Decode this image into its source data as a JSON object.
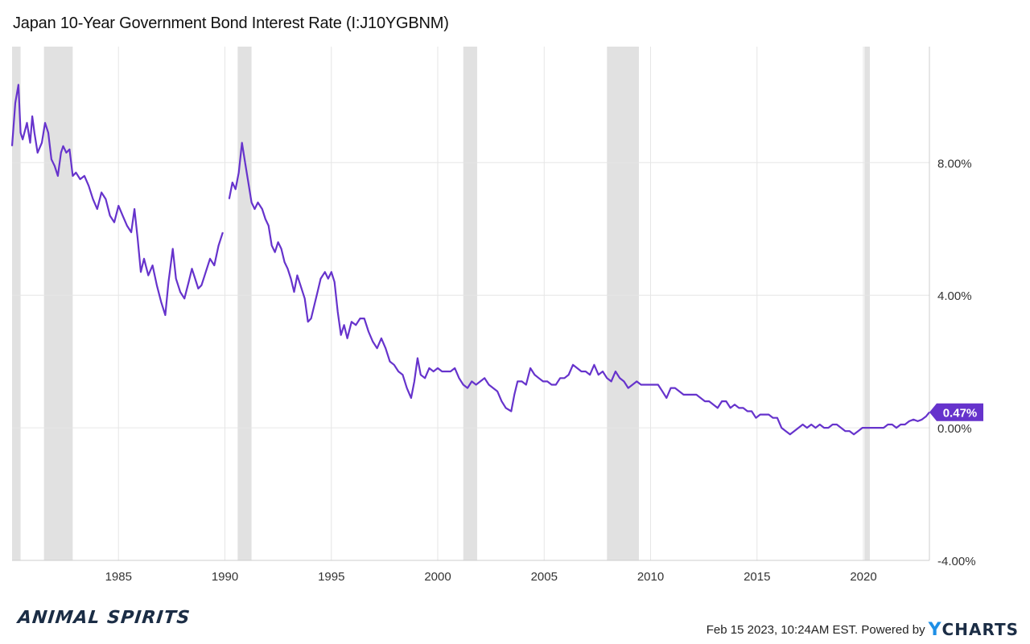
{
  "title": "Japan 10-Year Government Bond Interest Rate (I:J10YGBNM)",
  "footer": {
    "logo_text": "ANIMAL SPIRITS",
    "timestamp": "Feb 15 2023, 10:24AM EST.",
    "powered_by": "Powered by",
    "brand_y": "Y",
    "brand_rest": "CHARTS"
  },
  "colors": {
    "line": "#6633cc",
    "recession": "#e1e1e1",
    "grid": "#e6e6e6",
    "badge": "#6633cc"
  },
  "chart_data": {
    "type": "line",
    "title": "Japan 10-Year Government Bond Interest Rate (I:J10YGBNM)",
    "xlabel": "",
    "ylabel": "",
    "xlim": [
      1980.0,
      2023.1
    ],
    "ylim": [
      -4.0,
      11.5
    ],
    "y_ticks": [
      -4,
      0,
      4,
      8
    ],
    "y_tick_labels": [
      "-4.00%",
      "0.00%",
      "4.00%",
      "8.00%"
    ],
    "x_ticks": [
      1985,
      1990,
      1995,
      2000,
      2005,
      2010,
      2015,
      2020
    ],
    "x_tick_labels": [
      "1985",
      "1990",
      "1995",
      "2000",
      "2005",
      "2010",
      "2015",
      "2020"
    ],
    "grid": true,
    "last_value_label": "0.47%",
    "recession_periods": [
      [
        1980.0,
        1980.4
      ],
      [
        1981.5,
        1982.85
      ],
      [
        1990.6,
        1991.25
      ],
      [
        2001.2,
        2001.85
      ],
      [
        2007.95,
        2009.45
      ],
      [
        2020.05,
        2020.3
      ]
    ],
    "series": [
      {
        "points": [
          [
            1980.0,
            8.5
          ],
          [
            1980.15,
            9.8
          ],
          [
            1980.3,
            10.35
          ],
          [
            1980.4,
            8.9
          ],
          [
            1980.5,
            8.7
          ],
          [
            1980.7,
            9.2
          ],
          [
            1980.85,
            8.6
          ],
          [
            1980.95,
            9.4
          ],
          [
            1981.05,
            8.9
          ],
          [
            1981.2,
            8.3
          ],
          [
            1981.4,
            8.6
          ],
          [
            1981.55,
            9.2
          ],
          [
            1981.7,
            8.9
          ],
          [
            1981.85,
            8.1
          ],
          [
            1982.0,
            7.9
          ],
          [
            1982.15,
            7.6
          ],
          [
            1982.3,
            8.3
          ],
          [
            1982.4,
            8.5
          ],
          [
            1982.55,
            8.3
          ],
          [
            1982.7,
            8.4
          ],
          [
            1982.85,
            7.6
          ],
          [
            1983.0,
            7.7
          ],
          [
            1983.2,
            7.5
          ],
          [
            1983.4,
            7.6
          ],
          [
            1983.6,
            7.3
          ],
          [
            1983.8,
            6.9
          ],
          [
            1984.0,
            6.6
          ],
          [
            1984.2,
            7.1
          ],
          [
            1984.4,
            6.9
          ],
          [
            1984.6,
            6.4
          ],
          [
            1984.8,
            6.2
          ],
          [
            1985.0,
            6.7
          ],
          [
            1985.2,
            6.4
          ],
          [
            1985.4,
            6.1
          ],
          [
            1985.6,
            5.9
          ],
          [
            1985.75,
            6.6
          ],
          [
            1985.9,
            5.7
          ],
          [
            1986.05,
            4.7
          ],
          [
            1986.2,
            5.1
          ],
          [
            1986.4,
            4.6
          ],
          [
            1986.6,
            4.9
          ],
          [
            1986.8,
            4.3
          ],
          [
            1987.0,
            3.8
          ],
          [
            1987.2,
            3.4
          ],
          [
            1987.35,
            4.4
          ],
          [
            1987.55,
            5.4
          ],
          [
            1987.7,
            4.5
          ],
          [
            1987.9,
            4.1
          ],
          [
            1988.1,
            3.9
          ],
          [
            1988.3,
            4.4
          ],
          [
            1988.45,
            4.8
          ],
          [
            1988.6,
            4.5
          ],
          [
            1988.75,
            4.2
          ],
          [
            1988.9,
            4.3
          ],
          [
            1989.1,
            4.7
          ],
          [
            1989.3,
            5.1
          ],
          [
            1989.5,
            4.9
          ],
          [
            1989.7,
            5.5
          ],
          [
            1989.9,
            5.9
          ]
        ]
      },
      {
        "points": [
          [
            1990.2,
            6.9
          ],
          [
            1990.35,
            7.4
          ],
          [
            1990.5,
            7.2
          ],
          [
            1990.65,
            7.7
          ],
          [
            1990.8,
            8.6
          ],
          [
            1990.95,
            8.0
          ],
          [
            1991.1,
            7.4
          ],
          [
            1991.25,
            6.8
          ],
          [
            1991.4,
            6.6
          ],
          [
            1991.55,
            6.8
          ],
          [
            1991.75,
            6.6
          ],
          [
            1991.9,
            6.3
          ],
          [
            1992.05,
            6.1
          ],
          [
            1992.2,
            5.5
          ],
          [
            1992.35,
            5.3
          ],
          [
            1992.5,
            5.6
          ],
          [
            1992.65,
            5.4
          ],
          [
            1992.8,
            5.0
          ],
          [
            1992.95,
            4.8
          ],
          [
            1993.1,
            4.5
          ],
          [
            1993.25,
            4.1
          ],
          [
            1993.4,
            4.6
          ],
          [
            1993.55,
            4.3
          ],
          [
            1993.75,
            3.9
          ],
          [
            1993.9,
            3.2
          ],
          [
            1994.05,
            3.3
          ],
          [
            1994.2,
            3.7
          ],
          [
            1994.35,
            4.1
          ],
          [
            1994.5,
            4.5
          ],
          [
            1994.7,
            4.7
          ],
          [
            1994.85,
            4.5
          ],
          [
            1995.0,
            4.7
          ],
          [
            1995.15,
            4.4
          ],
          [
            1995.3,
            3.5
          ],
          [
            1995.45,
            2.8
          ],
          [
            1995.6,
            3.1
          ],
          [
            1995.75,
            2.7
          ],
          [
            1995.95,
            3.2
          ],
          [
            1996.15,
            3.1
          ],
          [
            1996.35,
            3.3
          ],
          [
            1996.55,
            3.3
          ],
          [
            1996.75,
            2.9
          ],
          [
            1996.95,
            2.6
          ],
          [
            1997.15,
            2.4
          ],
          [
            1997.35,
            2.7
          ],
          [
            1997.55,
            2.4
          ],
          [
            1997.75,
            2.0
          ],
          [
            1997.95,
            1.9
          ],
          [
            1998.15,
            1.7
          ],
          [
            1998.35,
            1.6
          ],
          [
            1998.55,
            1.2
          ],
          [
            1998.75,
            0.9
          ],
          [
            1998.9,
            1.4
          ],
          [
            1999.05,
            2.1
          ],
          [
            1999.2,
            1.6
          ],
          [
            1999.4,
            1.5
          ],
          [
            1999.6,
            1.8
          ],
          [
            1999.8,
            1.7
          ],
          [
            2000.0,
            1.8
          ],
          [
            2000.2,
            1.7
          ],
          [
            2000.4,
            1.7
          ],
          [
            2000.6,
            1.7
          ],
          [
            2000.8,
            1.8
          ],
          [
            2001.0,
            1.5
          ],
          [
            2001.2,
            1.3
          ],
          [
            2001.4,
            1.2
          ],
          [
            2001.6,
            1.4
          ],
          [
            2001.8,
            1.3
          ],
          [
            2002.0,
            1.4
          ],
          [
            2002.2,
            1.5
          ],
          [
            2002.4,
            1.3
          ],
          [
            2002.6,
            1.2
          ],
          [
            2002.8,
            1.1
          ],
          [
            2003.0,
            0.8
          ],
          [
            2003.2,
            0.6
          ],
          [
            2003.45,
            0.5
          ],
          [
            2003.6,
            1.0
          ],
          [
            2003.75,
            1.4
          ],
          [
            2003.95,
            1.4
          ],
          [
            2004.15,
            1.3
          ],
          [
            2004.35,
            1.8
          ],
          [
            2004.55,
            1.6
          ],
          [
            2004.75,
            1.5
          ],
          [
            2004.95,
            1.4
          ],
          [
            2005.15,
            1.4
          ],
          [
            2005.35,
            1.3
          ],
          [
            2005.55,
            1.3
          ],
          [
            2005.75,
            1.5
          ],
          [
            2005.95,
            1.5
          ],
          [
            2006.15,
            1.6
          ],
          [
            2006.35,
            1.9
          ],
          [
            2006.55,
            1.8
          ],
          [
            2006.75,
            1.7
          ],
          [
            2006.95,
            1.7
          ],
          [
            2007.15,
            1.6
          ],
          [
            2007.35,
            1.9
          ],
          [
            2007.55,
            1.6
          ],
          [
            2007.75,
            1.7
          ],
          [
            2007.95,
            1.5
          ],
          [
            2008.15,
            1.4
          ],
          [
            2008.35,
            1.7
          ],
          [
            2008.55,
            1.5
          ],
          [
            2008.75,
            1.4
          ],
          [
            2008.95,
            1.2
          ],
          [
            2009.15,
            1.3
          ],
          [
            2009.35,
            1.4
          ],
          [
            2009.55,
            1.3
          ],
          [
            2009.75,
            1.3
          ],
          [
            2009.95,
            1.3
          ],
          [
            2010.15,
            1.3
          ],
          [
            2010.35,
            1.3
          ],
          [
            2010.55,
            1.1
          ],
          [
            2010.75,
            0.9
          ],
          [
            2010.95,
            1.2
          ],
          [
            2011.15,
            1.2
          ],
          [
            2011.35,
            1.1
          ],
          [
            2011.55,
            1.0
          ],
          [
            2011.75,
            1.0
          ],
          [
            2011.95,
            1.0
          ],
          [
            2012.15,
            1.0
          ],
          [
            2012.35,
            0.9
          ],
          [
            2012.55,
            0.8
          ],
          [
            2012.75,
            0.8
          ],
          [
            2012.95,
            0.7
          ],
          [
            2013.15,
            0.6
          ],
          [
            2013.35,
            0.8
          ],
          [
            2013.55,
            0.8
          ],
          [
            2013.75,
            0.6
          ],
          [
            2013.95,
            0.7
          ],
          [
            2014.15,
            0.6
          ],
          [
            2014.35,
            0.6
          ],
          [
            2014.55,
            0.5
          ],
          [
            2014.75,
            0.5
          ],
          [
            2014.95,
            0.3
          ],
          [
            2015.15,
            0.4
          ],
          [
            2015.35,
            0.4
          ],
          [
            2015.55,
            0.4
          ],
          [
            2015.75,
            0.3
          ],
          [
            2015.95,
            0.3
          ],
          [
            2016.15,
            0.0
          ],
          [
            2016.35,
            -0.1
          ],
          [
            2016.55,
            -0.2
          ],
          [
            2016.75,
            -0.1
          ],
          [
            2016.95,
            0.0
          ],
          [
            2017.15,
            0.1
          ],
          [
            2017.35,
            0.0
          ],
          [
            2017.55,
            0.1
          ],
          [
            2017.75,
            0.0
          ],
          [
            2017.95,
            0.1
          ],
          [
            2018.15,
            0.0
          ],
          [
            2018.35,
            0.0
          ],
          [
            2018.55,
            0.1
          ],
          [
            2018.75,
            0.1
          ],
          [
            2018.95,
            0.0
          ],
          [
            2019.15,
            -0.1
          ],
          [
            2019.35,
            -0.1
          ],
          [
            2019.55,
            -0.2
          ],
          [
            2019.75,
            -0.1
          ],
          [
            2019.95,
            0.0
          ],
          [
            2020.15,
            0.0
          ],
          [
            2020.35,
            0.0
          ],
          [
            2020.55,
            0.0
          ],
          [
            2020.75,
            0.0
          ],
          [
            2020.95,
            0.0
          ],
          [
            2021.15,
            0.1
          ],
          [
            2021.35,
            0.1
          ],
          [
            2021.55,
            0.0
          ],
          [
            2021.75,
            0.1
          ],
          [
            2021.95,
            0.1
          ],
          [
            2022.15,
            0.2
          ],
          [
            2022.35,
            0.25
          ],
          [
            2022.55,
            0.2
          ],
          [
            2022.75,
            0.25
          ],
          [
            2022.95,
            0.35
          ],
          [
            2023.1,
            0.47
          ]
        ]
      }
    ]
  }
}
